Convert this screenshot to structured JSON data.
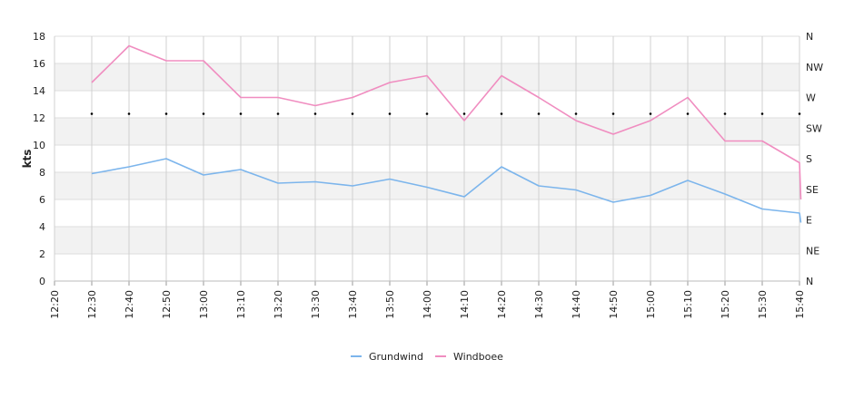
{
  "chart_data": {
    "type": "line",
    "ylabel": "kts",
    "ylim": [
      0,
      18
    ],
    "yticks": [
      0,
      2,
      4,
      6,
      8,
      10,
      12,
      14,
      16,
      18
    ],
    "x_start": "12:20",
    "x_end": "15:40",
    "x": [
      "12:30",
      "12:40",
      "12:50",
      "13:00",
      "13:10",
      "13:20",
      "13:30",
      "13:40",
      "13:50",
      "14:00",
      "14:10",
      "14:20",
      "14:30",
      "14:40",
      "14:50",
      "15:00",
      "15:10",
      "15:20",
      "15:30",
      "15:40"
    ],
    "right_axis_labels": [
      "N",
      "NE",
      "E",
      "SE",
      "S",
      "SW",
      "W",
      "NW",
      "N"
    ],
    "series": [
      {
        "name": "Grundwind",
        "color": "#7cb5ec",
        "values": [
          7.9,
          8.4,
          9.0,
          7.8,
          8.2,
          7.2,
          7.3,
          7.0,
          7.5,
          6.9,
          6.2,
          8.4,
          7.0,
          6.7,
          5.8,
          6.3,
          7.4,
          6.4,
          5.3,
          5.0
        ],
        "end_value": 4.3
      },
      {
        "name": "Windboee",
        "color": "#f08dc0",
        "values": [
          14.6,
          17.3,
          16.2,
          16.2,
          13.5,
          13.5,
          12.9,
          13.5,
          14.6,
          15.1,
          11.8,
          15.1,
          13.5,
          11.8,
          10.8,
          11.8,
          13.5,
          10.3,
          10.3,
          8.7
        ],
        "end_value": 6.0
      }
    ],
    "direction_markers": {
      "x": [
        "12:30",
        "12:40",
        "12:50",
        "13:00",
        "13:10",
        "13:20",
        "13:30",
        "13:40",
        "13:50",
        "14:00",
        "14:10",
        "14:20",
        "14:30",
        "14:40",
        "14:50",
        "15:00",
        "15:10",
        "15:20",
        "15:30",
        "15:40"
      ],
      "value": 12.3
    },
    "grid": true,
    "legend_position": "bottom"
  }
}
